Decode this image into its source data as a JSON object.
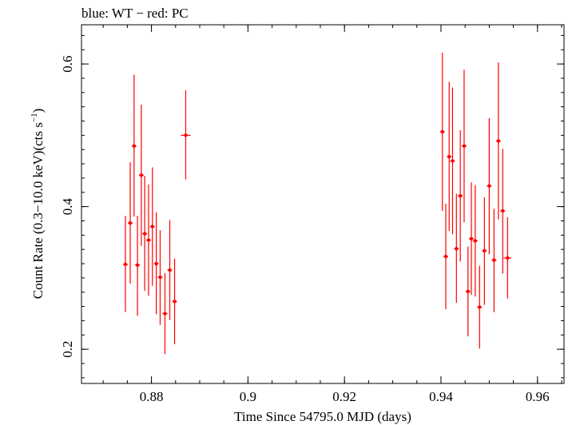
{
  "chart_data": {
    "type": "scatter",
    "title": "blue: WT − red: PC",
    "xlabel": "Time Since 54795.0 MJD (days)",
    "ylabel_prefix": "Count Rate (0.3−10.0 keV)(cts s",
    "ylabel_sup": "−1",
    "ylabel_suffix": ")",
    "xlim": [
      0.8655,
      0.9655
    ],
    "ylim": [
      0.152,
      0.655
    ],
    "xticks": [
      0.88,
      0.9,
      0.92,
      0.94,
      0.96
    ],
    "xtick_labels": [
      "0.88",
      "0.9",
      "0.92",
      "0.94",
      "0.96"
    ],
    "yticks": [
      0.2,
      0.4,
      0.6
    ],
    "ytick_labels": [
      "0.2",
      "0.4",
      "0.6"
    ],
    "grid": false,
    "series": [
      {
        "color": "#ff0000",
        "points": [
          {
            "x": 0.8746,
            "y": 0.319,
            "lo": 0.252,
            "hi": 0.387,
            "xerr": 0.0005
          },
          {
            "x": 0.8756,
            "y": 0.377,
            "lo": 0.292,
            "hi": 0.462,
            "xerr": 0.0005
          },
          {
            "x": 0.8764,
            "y": 0.485,
            "lo": 0.386,
            "hi": 0.585,
            "xerr": 0.0005
          },
          {
            "x": 0.8771,
            "y": 0.318,
            "lo": 0.247,
            "hi": 0.387,
            "xerr": 0.0005
          },
          {
            "x": 0.8779,
            "y": 0.444,
            "lo": 0.345,
            "hi": 0.543,
            "xerr": 0.0005
          },
          {
            "x": 0.8786,
            "y": 0.362,
            "lo": 0.282,
            "hi": 0.443,
            "xerr": 0.0005
          },
          {
            "x": 0.8794,
            "y": 0.353,
            "lo": 0.275,
            "hi": 0.431,
            "xerr": 0.0005
          },
          {
            "x": 0.8802,
            "y": 0.372,
            "lo": 0.289,
            "hi": 0.455,
            "xerr": 0.0005
          },
          {
            "x": 0.881,
            "y": 0.32,
            "lo": 0.249,
            "hi": 0.392,
            "xerr": 0.0005
          },
          {
            "x": 0.8818,
            "y": 0.301,
            "lo": 0.234,
            "hi": 0.367,
            "xerr": 0.0005
          },
          {
            "x": 0.8828,
            "y": 0.25,
            "lo": 0.193,
            "hi": 0.307,
            "xerr": 0.0005
          },
          {
            "x": 0.8838,
            "y": 0.311,
            "lo": 0.241,
            "hi": 0.381,
            "xerr": 0.0005
          },
          {
            "x": 0.8848,
            "y": 0.267,
            "lo": 0.207,
            "hi": 0.327,
            "xerr": 0.0005
          },
          {
            "x": 0.8871,
            "y": 0.5,
            "lo": 0.438,
            "hi": 0.563,
            "xerr": 0.001
          },
          {
            "x": 0.9403,
            "y": 0.505,
            "lo": 0.394,
            "hi": 0.616,
            "xerr": 0.0005
          },
          {
            "x": 0.941,
            "y": 0.33,
            "lo": 0.256,
            "hi": 0.404,
            "xerr": 0.0005
          },
          {
            "x": 0.9417,
            "y": 0.47,
            "lo": 0.366,
            "hi": 0.575,
            "xerr": 0.0005
          },
          {
            "x": 0.9424,
            "y": 0.464,
            "lo": 0.361,
            "hi": 0.567,
            "xerr": 0.0005
          },
          {
            "x": 0.9432,
            "y": 0.341,
            "lo": 0.265,
            "hi": 0.418,
            "xerr": 0.0005
          },
          {
            "x": 0.944,
            "y": 0.415,
            "lo": 0.323,
            "hi": 0.507,
            "xerr": 0.0005
          },
          {
            "x": 0.9448,
            "y": 0.485,
            "lo": 0.378,
            "hi": 0.592,
            "xerr": 0.0005
          },
          {
            "x": 0.9456,
            "y": 0.281,
            "lo": 0.218,
            "hi": 0.344,
            "xerr": 0.0005
          },
          {
            "x": 0.9463,
            "y": 0.355,
            "lo": 0.276,
            "hi": 0.434,
            "xerr": 0.0005
          },
          {
            "x": 0.9471,
            "y": 0.352,
            "lo": 0.274,
            "hi": 0.43,
            "xerr": 0.0005
          },
          {
            "x": 0.948,
            "y": 0.259,
            "lo": 0.201,
            "hi": 0.317,
            "xerr": 0.0005
          },
          {
            "x": 0.949,
            "y": 0.338,
            "lo": 0.262,
            "hi": 0.413,
            "xerr": 0.0005
          },
          {
            "x": 0.95,
            "y": 0.429,
            "lo": 0.333,
            "hi": 0.524,
            "xerr": 0.0005
          },
          {
            "x": 0.951,
            "y": 0.325,
            "lo": 0.252,
            "hi": 0.397,
            "xerr": 0.0005
          },
          {
            "x": 0.9519,
            "y": 0.492,
            "lo": 0.382,
            "hi": 0.602,
            "xerr": 0.0005
          },
          {
            "x": 0.9528,
            "y": 0.394,
            "lo": 0.306,
            "hi": 0.481,
            "xerr": 0.0005
          },
          {
            "x": 0.9538,
            "y": 0.328,
            "lo": 0.271,
            "hi": 0.385,
            "xerr": 0.0008
          }
        ]
      }
    ]
  }
}
